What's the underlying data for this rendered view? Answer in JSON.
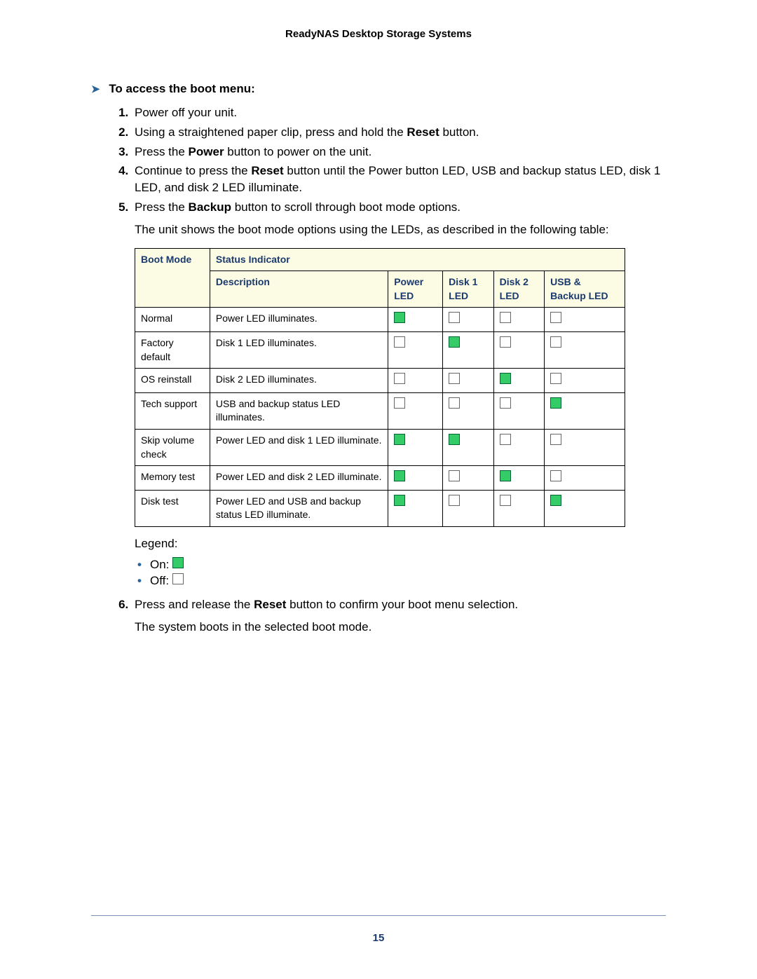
{
  "header": {
    "title": "ReadyNAS Desktop Storage Systems"
  },
  "section": {
    "title": "To access the boot menu:",
    "arrow_glyph": "➤"
  },
  "steps": {
    "s1": "Power off your unit.",
    "s2_pre": "Using a straightened paper clip, press and hold the ",
    "s2_bold": "Reset",
    "s2_post": " button.",
    "s3_pre": "Press the ",
    "s3_bold": "Power",
    "s3_post": " button to power on the unit.",
    "s4_pre": "Continue to press the ",
    "s4_bold": "Reset",
    "s4_post": " button until the Power button LED, USB and backup status LED, disk 1 LED, and disk 2 LED illuminate.",
    "s5_pre": "Press the ",
    "s5_bold": "Backup",
    "s5_post": " button to scroll through boot mode options.",
    "s5_extra": "The unit shows the boot mode options using the LEDs, as described in the following table:",
    "s6_pre": "Press and release the ",
    "s6_bold": "Reset",
    "s6_post": " button to confirm your boot menu selection.",
    "s6_extra": "The system boots in the selected boot mode."
  },
  "table": {
    "headers": {
      "boot_mode": "Boot Mode",
      "status_indicator": "Status Indicator",
      "description": "Description",
      "power_led": "Power LED",
      "disk1_led": "Disk 1 LED",
      "disk2_led": "Disk 2 LED",
      "usb_backup_led": "USB & Backup LED"
    },
    "colors": {
      "header_bg": "#fcfbe3",
      "header_text": "#1a3a6e",
      "border": "#000000",
      "led_on_fill": "#33cc66",
      "led_on_border": "#006633",
      "led_off_fill": "#ffffff",
      "led_off_border": "#666666"
    },
    "rows": [
      {
        "mode": "Normal",
        "desc": "Power LED illuminates.",
        "power": true,
        "disk1": false,
        "disk2": false,
        "usb": false
      },
      {
        "mode": "Factory default",
        "desc": "Disk 1 LED illuminates.",
        "power": false,
        "disk1": true,
        "disk2": false,
        "usb": false
      },
      {
        "mode": "OS reinstall",
        "desc": "Disk 2 LED illuminates.",
        "power": false,
        "disk1": false,
        "disk2": true,
        "usb": false
      },
      {
        "mode": "Tech support",
        "desc": "USB and backup status LED illuminates.",
        "power": false,
        "disk1": false,
        "disk2": false,
        "usb": true
      },
      {
        "mode": "Skip volume check",
        "desc": "Power LED and disk 1 LED illuminate.",
        "power": true,
        "disk1": true,
        "disk2": false,
        "usb": false
      },
      {
        "mode": "Memory test",
        "desc": "Power LED and disk 2 LED illuminate.",
        "power": true,
        "disk1": false,
        "disk2": true,
        "usb": false
      },
      {
        "mode": "Disk test",
        "desc": "Power LED and USB and backup status LED illuminate.",
        "power": true,
        "disk1": false,
        "disk2": false,
        "usb": true
      }
    ]
  },
  "legend": {
    "title": "Legend:",
    "on_label": "On: ",
    "off_label": "Off: "
  },
  "footer": {
    "page_number": "15"
  }
}
